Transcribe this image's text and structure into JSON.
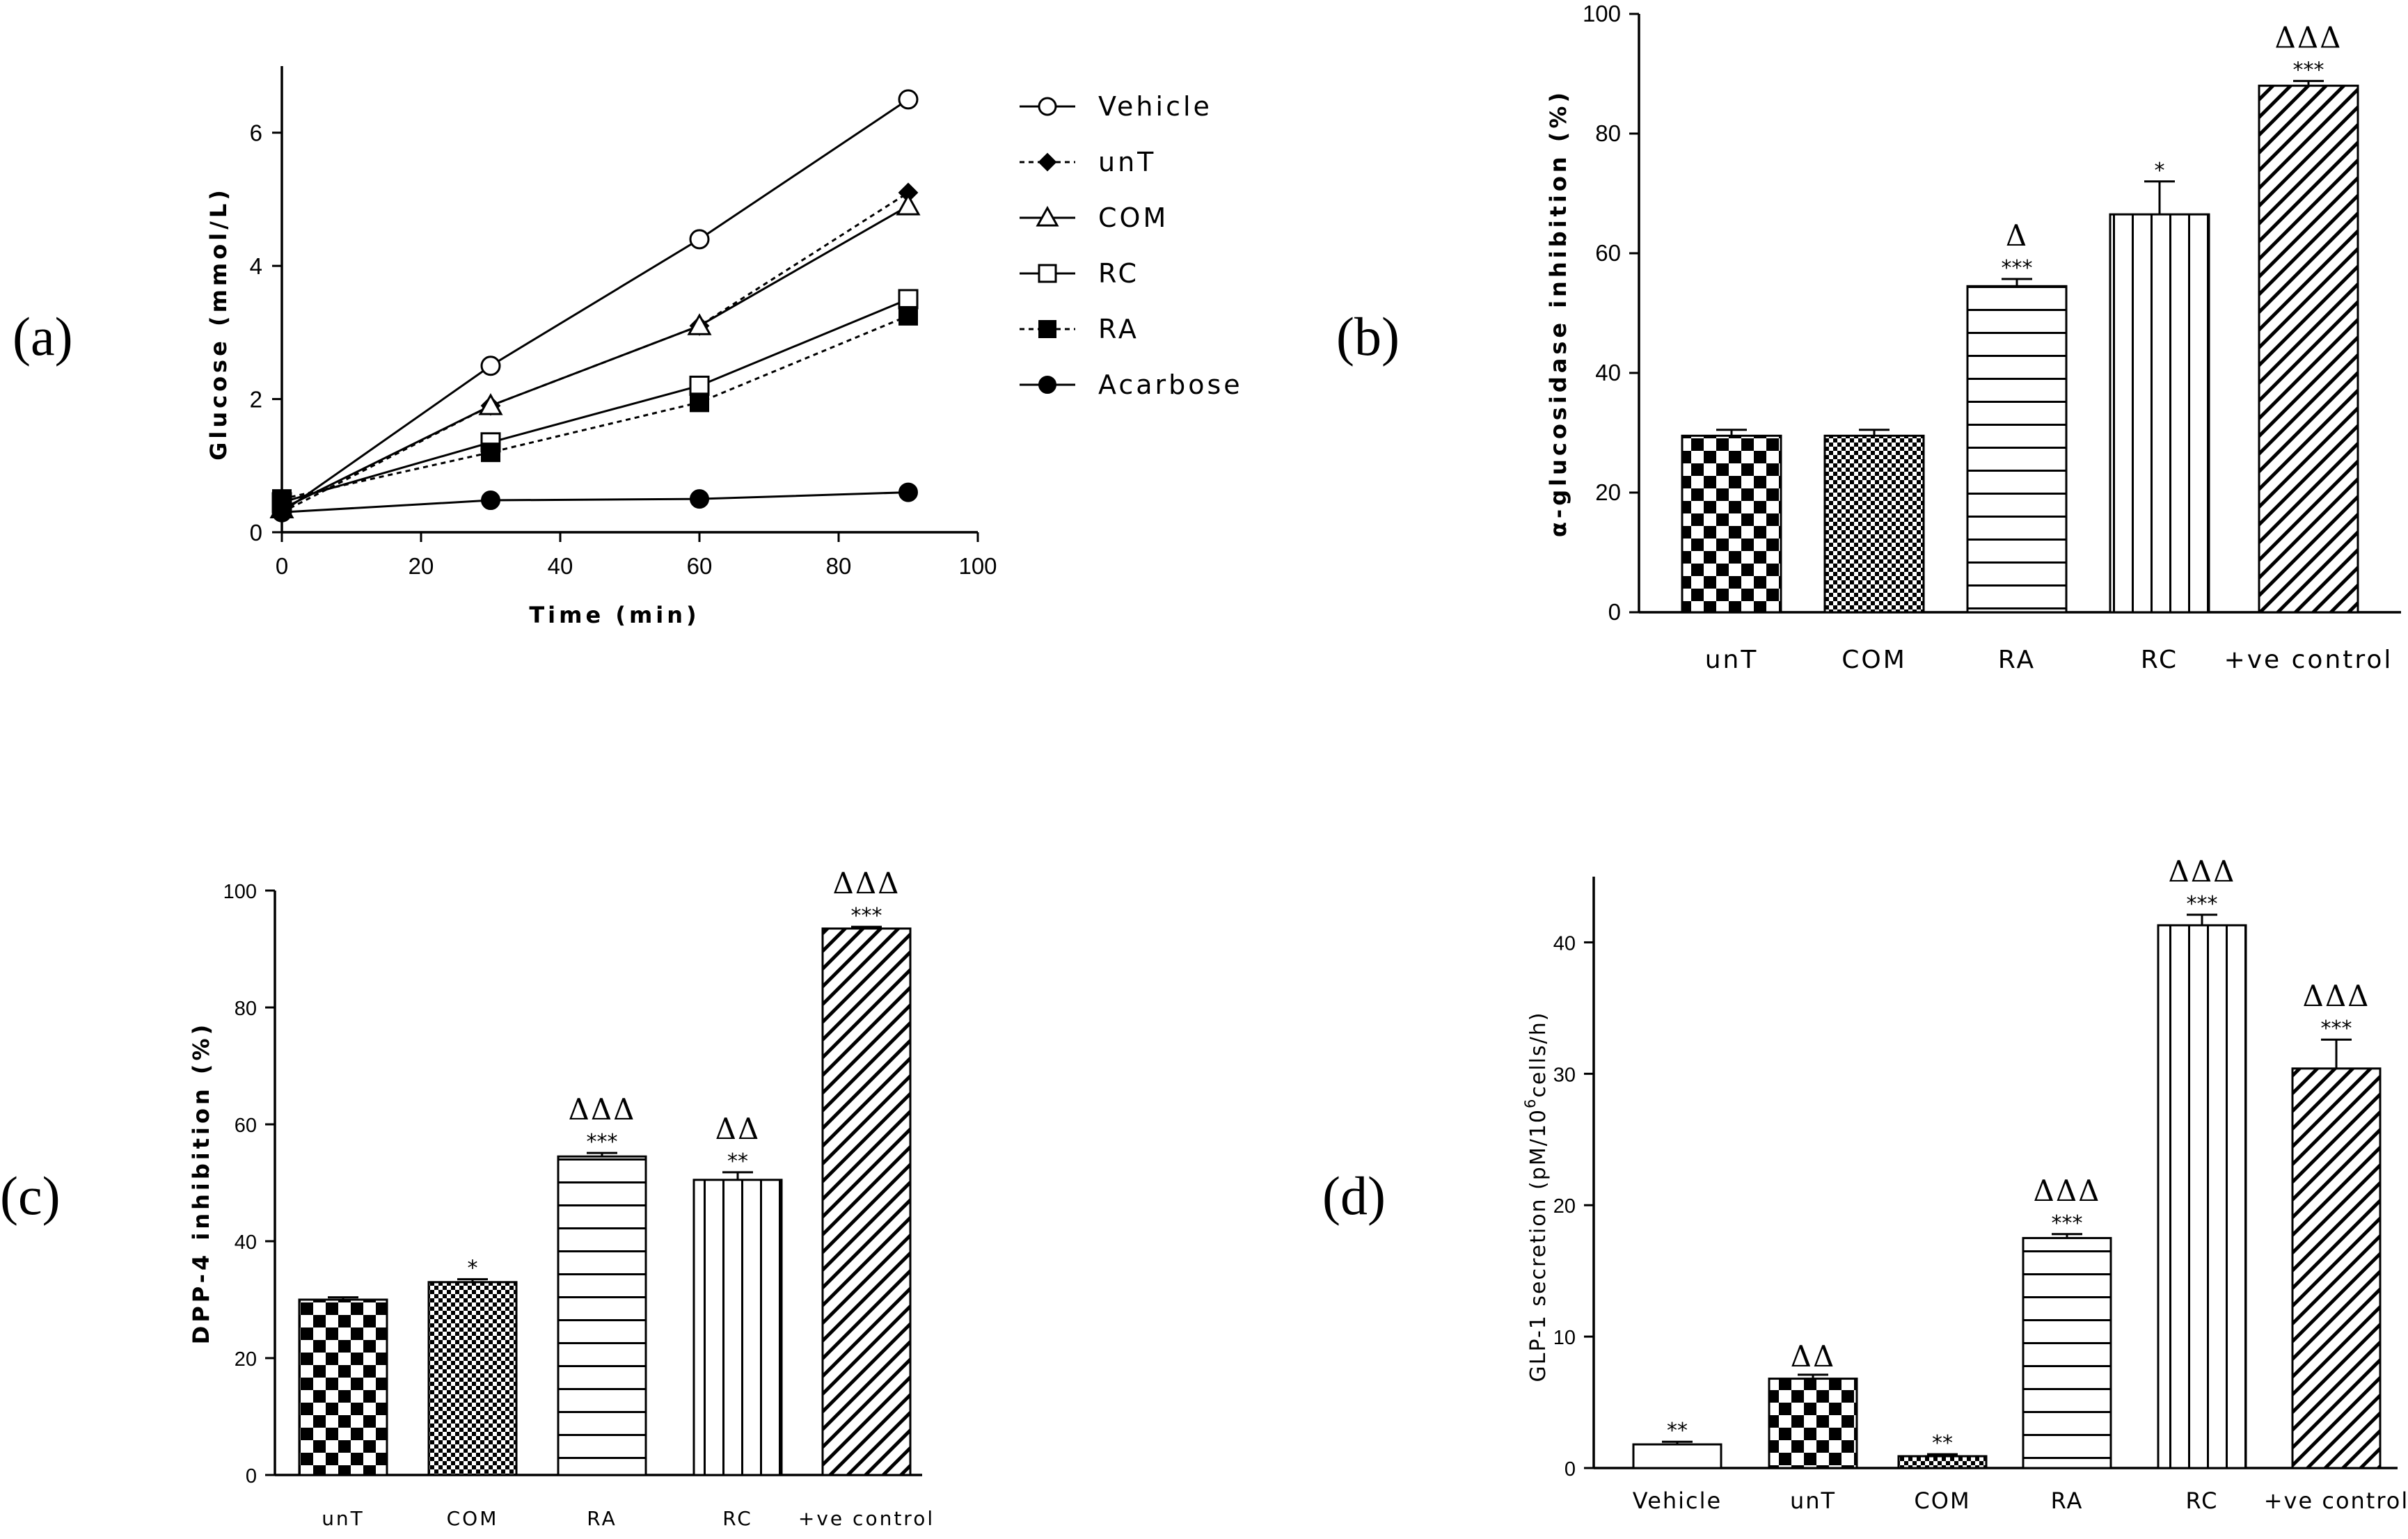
{
  "figure": {
    "panels": [
      {
        "id": "a",
        "label": "(a)"
      },
      {
        "id": "b",
        "label": "(b)"
      },
      {
        "id": "c",
        "label": "(c)"
      },
      {
        "id": "d",
        "label": "(d)"
      }
    ]
  },
  "chart_data": [
    {
      "panel": "(a)",
      "type": "line",
      "title": "",
      "xlabel": "Time (min)",
      "ylabel": "Glucose (mmol/L)",
      "xlim": [
        0,
        100
      ],
      "ylim": [
        0,
        7
      ],
      "xticks": [
        "0",
        "20",
        "40",
        "60",
        "80",
        "100"
      ],
      "yticks": [
        "0",
        "2",
        "4",
        "6"
      ],
      "x": [
        0,
        30,
        60,
        90
      ],
      "series": [
        {
          "name": "Vehicle",
          "marker": "open-circle",
          "line": "solid",
          "values": [
            0.3,
            2.5,
            4.4,
            6.5
          ]
        },
        {
          "name": "unT",
          "marker": "filled-diamond",
          "line": "dotted",
          "values": [
            0.3,
            1.9,
            3.1,
            5.1
          ]
        },
        {
          "name": "COM",
          "marker": "open-triangle",
          "line": "solid",
          "values": [
            0.35,
            1.9,
            3.1,
            4.9
          ]
        },
        {
          "name": "RC",
          "marker": "open-square",
          "line": "solid",
          "values": [
            0.45,
            1.35,
            2.2,
            3.5
          ]
        },
        {
          "name": "RA",
          "marker": "filled-square",
          "line": "dotted",
          "values": [
            0.5,
            1.2,
            1.95,
            3.25
          ]
        },
        {
          "name": "Acarbose",
          "marker": "filled-circle",
          "line": "solid",
          "values": [
            0.3,
            0.48,
            0.5,
            0.6
          ]
        }
      ],
      "legend": "right"
    },
    {
      "panel": "(b)",
      "type": "bar",
      "title": "",
      "xlabel": "",
      "ylabel": "α-glucosidase inhibition (%)",
      "ylim": [
        0,
        100
      ],
      "yticks": [
        "0",
        "20",
        "40",
        "60",
        "80",
        "100"
      ],
      "categories": [
        "unT",
        "COM",
        "RA",
        "RC",
        "+ve control"
      ],
      "patterns": [
        "checker",
        "fine-checker",
        "horizontal",
        "vertical",
        "diagonal"
      ],
      "values": [
        29.5,
        29.5,
        54.5,
        66.5,
        88
      ],
      "errors": [
        1.0,
        1.0,
        1.2,
        5.5,
        0.8
      ],
      "significance": [
        "",
        "",
        "***",
        "*",
        "***"
      ],
      "delta_marks": [
        "",
        "",
        "Δ",
        "",
        "ΔΔΔ"
      ]
    },
    {
      "panel": "(c)",
      "type": "bar",
      "title": "",
      "xlabel": "",
      "ylabel": "DPP-4 inhibition (%)",
      "ylim": [
        0,
        100
      ],
      "yticks": [
        "0",
        "20",
        "40",
        "60",
        "80",
        "100"
      ],
      "categories": [
        "unT",
        "COM",
        "RA",
        "RC",
        "+ve control"
      ],
      "patterns": [
        "checker",
        "fine-checker",
        "horizontal",
        "vertical",
        "diagonal"
      ],
      "values": [
        30,
        33,
        54.5,
        50.5,
        93.5
      ],
      "errors": [
        0.4,
        0.5,
        0.6,
        1.3,
        0.3
      ],
      "significance": [
        "",
        "*",
        "***",
        "**",
        "***"
      ],
      "delta_marks": [
        "",
        "",
        "ΔΔΔ",
        "ΔΔ",
        "ΔΔΔ"
      ]
    },
    {
      "panel": "(d)",
      "type": "bar",
      "title": "",
      "xlabel": "",
      "ylabel": "GLP-1 secretion (pM/10⁶cells/h)",
      "ylabel_main": "GLP-1 secretion (pM/10",
      "ylabel_sup": "6",
      "ylabel_tail": "cells/h)",
      "ylim": [
        0,
        45
      ],
      "yticks": [
        "0",
        "10",
        "20",
        "30",
        "40"
      ],
      "categories": [
        "Vehicle",
        "unT",
        "COM",
        "RA",
        "RC",
        "+ve control"
      ],
      "patterns": [
        "plain",
        "checker",
        "fine-checker",
        "horizontal",
        "vertical",
        "diagonal"
      ],
      "values": [
        1.8,
        6.8,
        0.9,
        17.5,
        41.3,
        30.4
      ],
      "errors": [
        0.2,
        0.3,
        0.15,
        0.3,
        0.8,
        2.2
      ],
      "significance": [
        "**",
        "",
        "**",
        "***",
        "***",
        "***"
      ],
      "delta_marks": [
        "",
        "ΔΔ",
        "",
        "ΔΔΔ",
        "ΔΔΔ",
        "ΔΔΔ"
      ]
    }
  ]
}
